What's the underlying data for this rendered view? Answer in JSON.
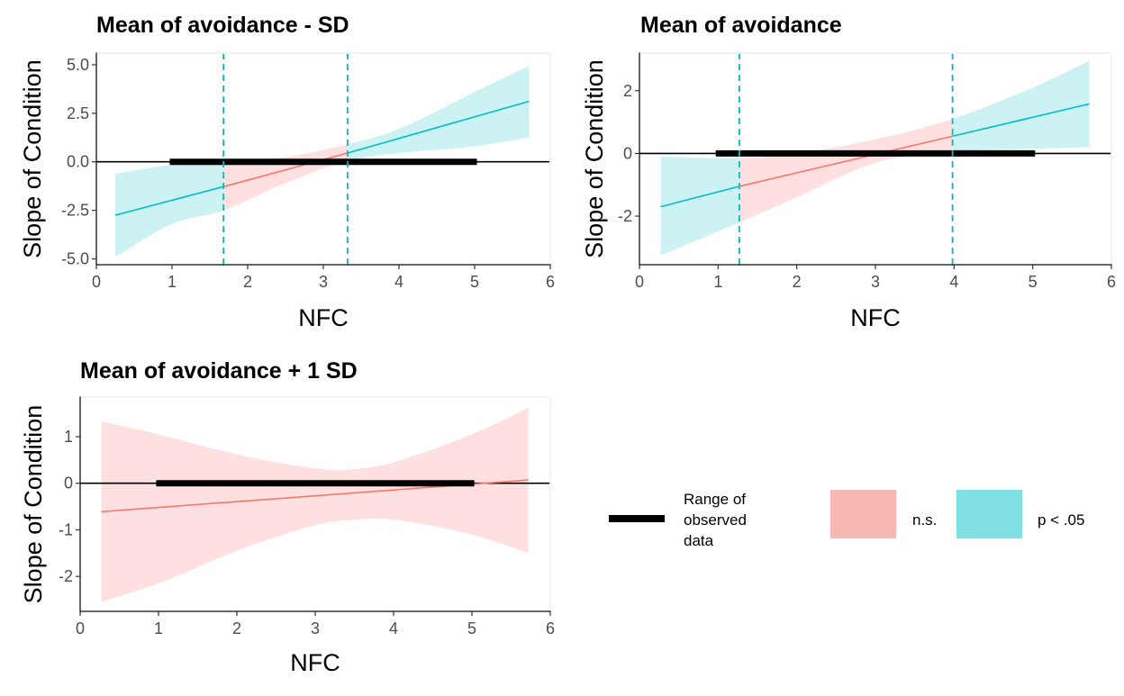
{
  "colors": {
    "ns_fill": "#FFE0E0",
    "ns_line": "#F8766D",
    "sig_fill": "#CCF2F4",
    "sig_line": "#00BFC4",
    "legend_ns": "#F8B9B5",
    "legend_sig": "#80DFE2",
    "zero_line": "#000000",
    "range_bar": "#000000"
  },
  "legend": {
    "range_label": [
      "Range of",
      "observed",
      "data"
    ],
    "ns_label": "n.s.",
    "sig_label": "p < .05"
  },
  "chart_data": [
    {
      "type": "line",
      "title": "Mean of avoidance - SD",
      "xlabel": "NFC",
      "ylabel": "Slope of Condition",
      "xlim": [
        0,
        6
      ],
      "ylim": [
        -5.3,
        5.6
      ],
      "xticks": [
        0,
        1,
        2,
        3,
        4,
        5,
        6
      ],
      "yticks": [
        -5.0,
        -2.5,
        0.0,
        2.5,
        5.0
      ],
      "ytick_labels": [
        "-5.0",
        "-2.5",
        "0.0",
        "2.5",
        "5.0"
      ],
      "x_range": [
        0.25,
        5.72
      ],
      "slope_line": [
        [
          0.25,
          -2.75
        ],
        [
          1.68,
          -1.28
        ],
        [
          3.32,
          0.45
        ],
        [
          5.72,
          3.12
        ]
      ],
      "ci_upper": [
        [
          0.25,
          -0.6
        ],
        [
          1.0,
          -0.15
        ],
        [
          1.68,
          0.05
        ],
        [
          2.5,
          0.25
        ],
        [
          3.32,
          0.9
        ],
        [
          4.0,
          1.7
        ],
        [
          5.0,
          3.6
        ],
        [
          5.72,
          4.95
        ]
      ],
      "ci_lower": [
        [
          0.25,
          -4.9
        ],
        [
          1.0,
          -3.2
        ],
        [
          1.68,
          -2.5
        ],
        [
          2.5,
          -1.1
        ],
        [
          3.32,
          0.05
        ],
        [
          4.0,
          0.45
        ],
        [
          5.0,
          0.8
        ],
        [
          5.72,
          1.25
        ]
      ],
      "jn_points": [
        1.68,
        3.32
      ],
      "observed_range": [
        0.97,
        5.03
      ]
    },
    {
      "type": "line",
      "title": "Mean of avoidance",
      "xlabel": "NFC",
      "ylabel": "Slope of Condition",
      "xlim": [
        0,
        6
      ],
      "ylim": [
        -3.55,
        3.2
      ],
      "xticks": [
        0,
        1,
        2,
        3,
        4,
        5,
        6
      ],
      "yticks": [
        -2,
        0,
        2
      ],
      "ytick_labels": [
        "-2",
        "0",
        "2"
      ],
      "x_range": [
        0.27,
        5.72
      ],
      "slope_line": [
        [
          0.27,
          -1.7
        ],
        [
          1.27,
          -1.05
        ],
        [
          3.98,
          0.55
        ],
        [
          5.72,
          1.58
        ]
      ],
      "ci_upper": [
        [
          0.27,
          -0.1
        ],
        [
          1.27,
          -0.15
        ],
        [
          2.0,
          0.0
        ],
        [
          3.0,
          0.45
        ],
        [
          3.98,
          1.1
        ],
        [
          5.0,
          2.1
        ],
        [
          5.72,
          2.95
        ]
      ],
      "ci_lower": [
        [
          0.27,
          -3.25
        ],
        [
          1.27,
          -2.2
        ],
        [
          2.0,
          -1.4
        ],
        [
          3.0,
          -0.3
        ],
        [
          3.98,
          0.05
        ],
        [
          5.0,
          0.15
        ],
        [
          5.72,
          0.2
        ]
      ],
      "jn_points": [
        1.27,
        3.98
      ],
      "observed_range": [
        0.97,
        5.03
      ]
    },
    {
      "type": "line",
      "title": "Mean of avoidance + 1 SD",
      "xlabel": "NFC",
      "ylabel": "Slope of Condition",
      "xlim": [
        0,
        6
      ],
      "ylim": [
        -2.75,
        1.85
      ],
      "xticks": [
        0,
        1,
        2,
        3,
        4,
        5,
        6
      ],
      "yticks": [
        -2,
        -1,
        0,
        1
      ],
      "ytick_labels": [
        "-2",
        "-1",
        "0",
        "1"
      ],
      "x_range": [
        0.27,
        5.72
      ],
      "slope_line": [
        [
          0.27,
          -0.61
        ],
        [
          5.72,
          0.07
        ]
      ],
      "ci_upper": [
        [
          0.27,
          1.33
        ],
        [
          1.0,
          1.05
        ],
        [
          2.0,
          0.62
        ],
        [
          3.0,
          0.32
        ],
        [
          3.5,
          0.3
        ],
        [
          4.0,
          0.45
        ],
        [
          5.0,
          1.05
        ],
        [
          5.72,
          1.62
        ]
      ],
      "ci_lower": [
        [
          0.27,
          -2.55
        ],
        [
          1.0,
          -2.15
        ],
        [
          2.0,
          -1.45
        ],
        [
          3.0,
          -0.9
        ],
        [
          3.5,
          -0.78
        ],
        [
          4.0,
          -0.78
        ],
        [
          5.0,
          -1.1
        ],
        [
          5.72,
          -1.5
        ]
      ],
      "jn_points": [],
      "observed_range": [
        0.97,
        5.03
      ]
    }
  ]
}
